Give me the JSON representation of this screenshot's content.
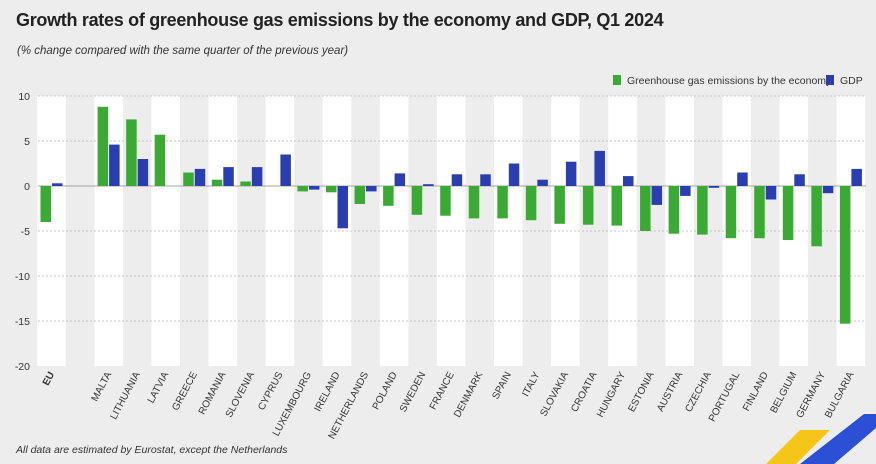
{
  "title": "Growth rates of greenhouse gas emissions by the economy and GDP, Q1 2024",
  "subtitle": "(% change compared with the same quarter of the previous year)",
  "footnote": "All data are estimated by Eurostat, except the Netherlands",
  "colors": {
    "ghg": "#3aaa35",
    "gdp": "#2a3eb0",
    "stripe": "#ffffff",
    "background": "#ededed",
    "logo_blue": "#2b50d6",
    "logo_yellow": "#f5c518"
  },
  "chart_data": {
    "type": "bar",
    "title": "Growth rates of greenhouse gas emissions by the economy and GDP, Q1 2024",
    "subtitle": "(% change compared with the same quarter of the previous year)",
    "categories": [
      "EU",
      "MALTA",
      "LITHUANIA",
      "LATVIA",
      "GREECE",
      "ROMANIA",
      "SLOVENIA",
      "CYPRUS",
      "LUXEMBOURG",
      "IRELAND",
      "NETHERLANDS",
      "POLAND",
      "SWEDEN",
      "FRANCE",
      "DENMARK",
      "SPAIN",
      "ITALY",
      "SLOVAKIA",
      "CROATIA",
      "HUNGARY",
      "ESTONIA",
      "AUSTRIA",
      "CZECHIA",
      "PORTUGAL",
      "FINLAND",
      "BELGIUM",
      "GERMANY",
      "BULGARIA"
    ],
    "series": [
      {
        "name": "Greenhouse gas emissions by the economy",
        "values": [
          -4.0,
          8.8,
          7.4,
          5.7,
          1.5,
          0.7,
          0.5,
          null,
          -0.6,
          -0.7,
          -2.0,
          -2.2,
          -3.2,
          -3.3,
          -3.6,
          -3.6,
          -3.8,
          -4.2,
          -4.3,
          -4.4,
          -5.0,
          -5.3,
          -5.4,
          -5.8,
          -5.8,
          -6.0,
          -6.7,
          -15.3
        ]
      },
      {
        "name": "GDP",
        "values": [
          0.3,
          4.6,
          3.0,
          null,
          1.9,
          2.1,
          2.1,
          3.5,
          -0.4,
          -4.7,
          -0.6,
          1.4,
          0.2,
          1.3,
          1.3,
          2.5,
          0.7,
          2.7,
          3.9,
          1.1,
          -2.1,
          -1.1,
          -0.2,
          1.5,
          -1.5,
          1.3,
          -0.8,
          1.9
        ]
      }
    ],
    "ylim": [
      -20,
      10
    ],
    "yticks": [
      10,
      5,
      0,
      -5,
      -10,
      -15,
      -20
    ],
    "grid": true,
    "legend": "top-right"
  }
}
